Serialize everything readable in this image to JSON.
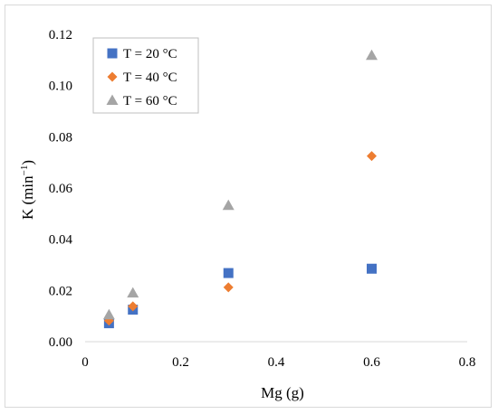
{
  "chart_data": {
    "type": "scatter",
    "title": "",
    "xlabel": "Mg (g)",
    "ylabel_main": "K (min",
    "ylabel_sup": "−1",
    "ylabel_close": ")",
    "xlim": [
      0,
      0.8
    ],
    "ylim": [
      0,
      0.12
    ],
    "xticks": [
      0,
      0.2,
      0.4,
      0.6,
      0.8
    ],
    "xtick_labels": [
      "0",
      "0.2",
      "0.4",
      "0.6",
      "0.8"
    ],
    "yticks": [
      0,
      0.02,
      0.04,
      0.06,
      0.08,
      0.1,
      0.12
    ],
    "ytick_labels": [
      "0.00",
      "0.02",
      "0.04",
      "0.06",
      "0.08",
      "0.10",
      "0.12"
    ],
    "grid": false,
    "legend_position": "top-left",
    "series": [
      {
        "name": "T = 20 °C",
        "marker": "square",
        "color": "#4472C4",
        "x": [
          0.05,
          0.1,
          0.3,
          0.6
        ],
        "y": [
          0.0072,
          0.0125,
          0.0268,
          0.0285
        ]
      },
      {
        "name": "T = 40 °C",
        "marker": "diamond",
        "color": "#ED7D31",
        "x": [
          0.05,
          0.1,
          0.3,
          0.6
        ],
        "y": [
          0.0082,
          0.0138,
          0.0212,
          0.0725
        ]
      },
      {
        "name": "T = 60 °C",
        "marker": "triangle",
        "color": "#A5A5A5",
        "x": [
          0.05,
          0.1,
          0.3,
          0.6
        ],
        "y": [
          0.0105,
          0.019,
          0.0532,
          0.1118
        ]
      }
    ]
  }
}
